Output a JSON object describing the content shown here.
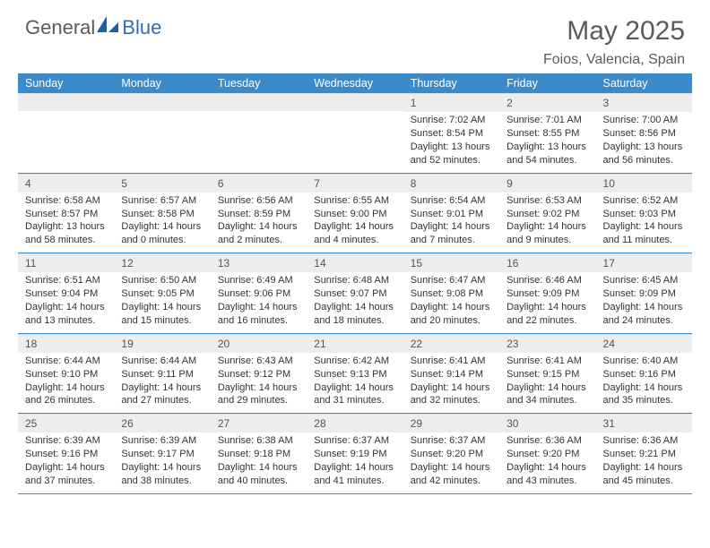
{
  "brand": {
    "left": "General",
    "right": "Blue"
  },
  "title": "May 2025",
  "location": "Foios, Valencia, Spain",
  "colors": {
    "header_bg": "#3b8bca",
    "header_text": "#ffffff",
    "daynum_bg": "#ededed",
    "row_divider": "#3b8bca",
    "body_text": "#333333",
    "logo_gray": "#5a5a5a",
    "logo_blue": "#2f6fb0"
  },
  "dow": [
    "Sunday",
    "Monday",
    "Tuesday",
    "Wednesday",
    "Thursday",
    "Friday",
    "Saturday"
  ],
  "weeks": [
    [
      {
        "n": "",
        "sr": "",
        "ss": "",
        "dl": ""
      },
      {
        "n": "",
        "sr": "",
        "ss": "",
        "dl": ""
      },
      {
        "n": "",
        "sr": "",
        "ss": "",
        "dl": ""
      },
      {
        "n": "",
        "sr": "",
        "ss": "",
        "dl": ""
      },
      {
        "n": "1",
        "sr": "Sunrise: 7:02 AM",
        "ss": "Sunset: 8:54 PM",
        "dl": "Daylight: 13 hours and 52 minutes."
      },
      {
        "n": "2",
        "sr": "Sunrise: 7:01 AM",
        "ss": "Sunset: 8:55 PM",
        "dl": "Daylight: 13 hours and 54 minutes."
      },
      {
        "n": "3",
        "sr": "Sunrise: 7:00 AM",
        "ss": "Sunset: 8:56 PM",
        "dl": "Daylight: 13 hours and 56 minutes."
      }
    ],
    [
      {
        "n": "4",
        "sr": "Sunrise: 6:58 AM",
        "ss": "Sunset: 8:57 PM",
        "dl": "Daylight: 13 hours and 58 minutes."
      },
      {
        "n": "5",
        "sr": "Sunrise: 6:57 AM",
        "ss": "Sunset: 8:58 PM",
        "dl": "Daylight: 14 hours and 0 minutes."
      },
      {
        "n": "6",
        "sr": "Sunrise: 6:56 AM",
        "ss": "Sunset: 8:59 PM",
        "dl": "Daylight: 14 hours and 2 minutes."
      },
      {
        "n": "7",
        "sr": "Sunrise: 6:55 AM",
        "ss": "Sunset: 9:00 PM",
        "dl": "Daylight: 14 hours and 4 minutes."
      },
      {
        "n": "8",
        "sr": "Sunrise: 6:54 AM",
        "ss": "Sunset: 9:01 PM",
        "dl": "Daylight: 14 hours and 7 minutes."
      },
      {
        "n": "9",
        "sr": "Sunrise: 6:53 AM",
        "ss": "Sunset: 9:02 PM",
        "dl": "Daylight: 14 hours and 9 minutes."
      },
      {
        "n": "10",
        "sr": "Sunrise: 6:52 AM",
        "ss": "Sunset: 9:03 PM",
        "dl": "Daylight: 14 hours and 11 minutes."
      }
    ],
    [
      {
        "n": "11",
        "sr": "Sunrise: 6:51 AM",
        "ss": "Sunset: 9:04 PM",
        "dl": "Daylight: 14 hours and 13 minutes."
      },
      {
        "n": "12",
        "sr": "Sunrise: 6:50 AM",
        "ss": "Sunset: 9:05 PM",
        "dl": "Daylight: 14 hours and 15 minutes."
      },
      {
        "n": "13",
        "sr": "Sunrise: 6:49 AM",
        "ss": "Sunset: 9:06 PM",
        "dl": "Daylight: 14 hours and 16 minutes."
      },
      {
        "n": "14",
        "sr": "Sunrise: 6:48 AM",
        "ss": "Sunset: 9:07 PM",
        "dl": "Daylight: 14 hours and 18 minutes."
      },
      {
        "n": "15",
        "sr": "Sunrise: 6:47 AM",
        "ss": "Sunset: 9:08 PM",
        "dl": "Daylight: 14 hours and 20 minutes."
      },
      {
        "n": "16",
        "sr": "Sunrise: 6:46 AM",
        "ss": "Sunset: 9:09 PM",
        "dl": "Daylight: 14 hours and 22 minutes."
      },
      {
        "n": "17",
        "sr": "Sunrise: 6:45 AM",
        "ss": "Sunset: 9:09 PM",
        "dl": "Daylight: 14 hours and 24 minutes."
      }
    ],
    [
      {
        "n": "18",
        "sr": "Sunrise: 6:44 AM",
        "ss": "Sunset: 9:10 PM",
        "dl": "Daylight: 14 hours and 26 minutes."
      },
      {
        "n": "19",
        "sr": "Sunrise: 6:44 AM",
        "ss": "Sunset: 9:11 PM",
        "dl": "Daylight: 14 hours and 27 minutes."
      },
      {
        "n": "20",
        "sr": "Sunrise: 6:43 AM",
        "ss": "Sunset: 9:12 PM",
        "dl": "Daylight: 14 hours and 29 minutes."
      },
      {
        "n": "21",
        "sr": "Sunrise: 6:42 AM",
        "ss": "Sunset: 9:13 PM",
        "dl": "Daylight: 14 hours and 31 minutes."
      },
      {
        "n": "22",
        "sr": "Sunrise: 6:41 AM",
        "ss": "Sunset: 9:14 PM",
        "dl": "Daylight: 14 hours and 32 minutes."
      },
      {
        "n": "23",
        "sr": "Sunrise: 6:41 AM",
        "ss": "Sunset: 9:15 PM",
        "dl": "Daylight: 14 hours and 34 minutes."
      },
      {
        "n": "24",
        "sr": "Sunrise: 6:40 AM",
        "ss": "Sunset: 9:16 PM",
        "dl": "Daylight: 14 hours and 35 minutes."
      }
    ],
    [
      {
        "n": "25",
        "sr": "Sunrise: 6:39 AM",
        "ss": "Sunset: 9:16 PM",
        "dl": "Daylight: 14 hours and 37 minutes."
      },
      {
        "n": "26",
        "sr": "Sunrise: 6:39 AM",
        "ss": "Sunset: 9:17 PM",
        "dl": "Daylight: 14 hours and 38 minutes."
      },
      {
        "n": "27",
        "sr": "Sunrise: 6:38 AM",
        "ss": "Sunset: 9:18 PM",
        "dl": "Daylight: 14 hours and 40 minutes."
      },
      {
        "n": "28",
        "sr": "Sunrise: 6:37 AM",
        "ss": "Sunset: 9:19 PM",
        "dl": "Daylight: 14 hours and 41 minutes."
      },
      {
        "n": "29",
        "sr": "Sunrise: 6:37 AM",
        "ss": "Sunset: 9:20 PM",
        "dl": "Daylight: 14 hours and 42 minutes."
      },
      {
        "n": "30",
        "sr": "Sunrise: 6:36 AM",
        "ss": "Sunset: 9:20 PM",
        "dl": "Daylight: 14 hours and 43 minutes."
      },
      {
        "n": "31",
        "sr": "Sunrise: 6:36 AM",
        "ss": "Sunset: 9:21 PM",
        "dl": "Daylight: 14 hours and 45 minutes."
      }
    ]
  ]
}
